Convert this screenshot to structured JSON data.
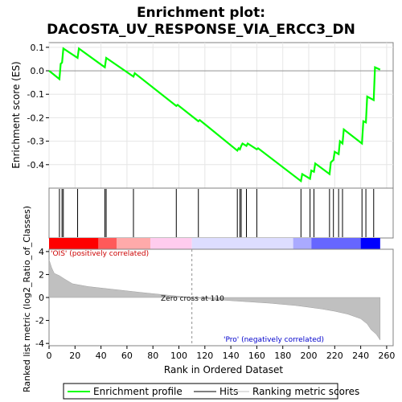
{
  "chart_data": {
    "type": "line",
    "title_line1": "Enrichment plot:",
    "title_line2": "DACOSTA_UV_RESPONSE_VIA_ERCC3_DN",
    "es_panel": {
      "ylabel": "Enrichment score (ES)",
      "ylim": [
        -0.5,
        0.12
      ],
      "yticks": [
        0.1,
        0.0,
        -0.1,
        -0.2,
        -0.3,
        -0.4
      ],
      "ytick_labels": [
        "0.1",
        "0.0",
        "-0.1",
        "-0.2",
        "-0.3",
        "-0.4"
      ],
      "line_color": "#00ff00",
      "series_name": "Enrichment profile",
      "points": [
        [
          0,
          0.0
        ],
        [
          8,
          -0.035
        ],
        [
          9,
          0.03
        ],
        [
          10,
          0.035
        ],
        [
          11,
          0.095
        ],
        [
          22,
          0.055
        ],
        [
          23,
          0.095
        ],
        [
          43,
          0.015
        ],
        [
          44,
          0.055
        ],
        [
          65,
          -0.025
        ],
        [
          66,
          -0.01
        ],
        [
          98,
          -0.15
        ],
        [
          99,
          -0.145
        ],
        [
          115,
          -0.215
        ],
        [
          116,
          -0.21
        ],
        [
          145,
          -0.34
        ],
        [
          146,
          -0.33
        ],
        [
          147,
          -0.335
        ],
        [
          148,
          -0.32
        ],
        [
          149,
          -0.31
        ],
        [
          152,
          -0.32
        ],
        [
          153,
          -0.31
        ],
        [
          160,
          -0.335
        ],
        [
          161,
          -0.33
        ],
        [
          194,
          -0.47
        ],
        [
          195,
          -0.44
        ],
        [
          201,
          -0.46
        ],
        [
          202,
          -0.425
        ],
        [
          204,
          -0.43
        ],
        [
          205,
          -0.395
        ],
        [
          216,
          -0.44
        ],
        [
          217,
          -0.39
        ],
        [
          219,
          -0.38
        ],
        [
          220,
          -0.345
        ],
        [
          223,
          -0.355
        ],
        [
          224,
          -0.3
        ],
        [
          226,
          -0.31
        ],
        [
          227,
          -0.25
        ],
        [
          241,
          -0.31
        ],
        [
          242,
          -0.215
        ],
        [
          244,
          -0.22
        ],
        [
          245,
          -0.11
        ],
        [
          250,
          -0.125
        ],
        [
          251,
          0.015
        ],
        [
          255,
          0.005
        ]
      ]
    },
    "hits": [
      8,
      10,
      11,
      22,
      43,
      44,
      65,
      98,
      115,
      145,
      147,
      148,
      152,
      160,
      194,
      201,
      204,
      216,
      219,
      223,
      226,
      241,
      244,
      250
    ],
    "gradient": {
      "colors": [
        "#ff0000",
        "#ff5a5a",
        "#ffaaaa",
        "#ffccee",
        "#ddddff",
        "#aaaaff",
        "#6666ff",
        "#0000ff"
      ],
      "breaks": [
        0,
        38,
        52,
        78,
        110,
        188,
        202,
        240,
        255
      ]
    },
    "metric_panel": {
      "ylabel": "Ranked list metric (log2_Ratio_of_Classes)",
      "ylim": [
        -4.2,
        4.2
      ],
      "yticks": [
        4,
        2,
        0,
        -2,
        -4
      ],
      "ytick_labels": [
        "4",
        "2",
        "0",
        "-2",
        "-4"
      ],
      "zero_cross_rank": 110,
      "zero_cross_text": "Zero cross at 110",
      "pos_label": "'OIS' (positively correlated)",
      "neg_label": "'Pro' (negatively correlated)",
      "pos_color": "#cc0000",
      "neg_color": "#0000cc",
      "fill_color": "#c0c0c0",
      "metric_points": [
        [
          0,
          3.3
        ],
        [
          2,
          2.6
        ],
        [
          4,
          2.1
        ],
        [
          8,
          1.9
        ],
        [
          12,
          1.6
        ],
        [
          18,
          1.2
        ],
        [
          30,
          0.95
        ],
        [
          50,
          0.7
        ],
        [
          70,
          0.45
        ],
        [
          90,
          0.22
        ],
        [
          110,
          0.0
        ],
        [
          130,
          -0.2
        ],
        [
          150,
          -0.35
        ],
        [
          170,
          -0.5
        ],
        [
          190,
          -0.7
        ],
        [
          200,
          -0.85
        ],
        [
          210,
          -1.0
        ],
        [
          220,
          -1.2
        ],
        [
          230,
          -1.45
        ],
        [
          240,
          -1.85
        ],
        [
          245,
          -2.3
        ],
        [
          248,
          -2.8
        ],
        [
          252,
          -3.2
        ],
        [
          255,
          -3.7
        ]
      ]
    },
    "xaxis": {
      "xlabel": "Rank in Ordered Dataset",
      "xlim": [
        0,
        265
      ],
      "xticks": [
        0,
        20,
        40,
        60,
        80,
        100,
        120,
        140,
        160,
        180,
        200,
        220,
        240,
        260
      ],
      "xtick_labels": [
        "0",
        "20",
        "40",
        "60",
        "80",
        "100",
        "120",
        "140",
        "160",
        "180",
        "200",
        "220",
        "240",
        "260"
      ]
    },
    "legend": {
      "items": [
        {
          "label": "Enrichment profile",
          "color": "#00ff00",
          "kind": "line"
        },
        {
          "label": "Hits",
          "color": "#000000",
          "kind": "line"
        },
        {
          "label": "Ranking metric scores",
          "color": "#c0c0c0",
          "kind": "line"
        }
      ],
      "placement": "bottom"
    }
  }
}
